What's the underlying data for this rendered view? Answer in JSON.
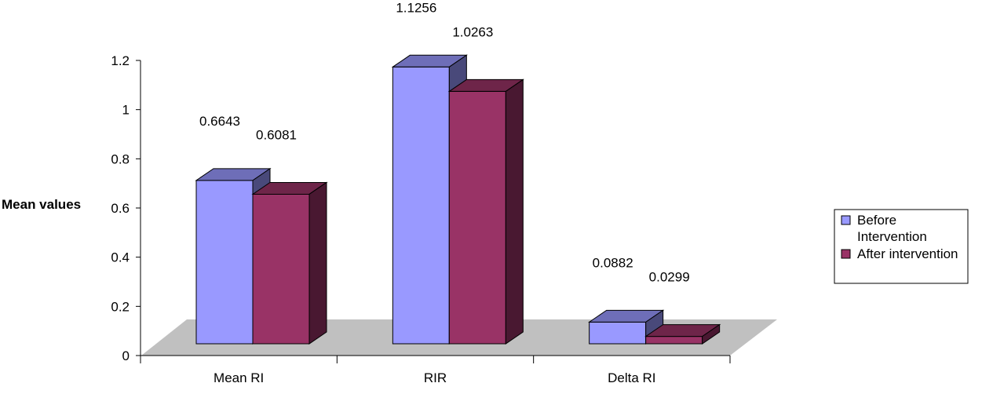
{
  "chart_data": {
    "type": "bar",
    "categories": [
      "Mean RI",
      "RIR",
      "Delta RI"
    ],
    "series": [
      {
        "name": "Before Intervention",
        "values": [
          0.6643,
          1.1256,
          0.0882
        ],
        "color": "#9999FF"
      },
      {
        "name": "After intervention",
        "values": [
          0.6081,
          1.0263,
          0.0299
        ],
        "color": "#993366"
      }
    ],
    "data_labels": [
      [
        "0.6643",
        "1.1256",
        "0.0882"
      ],
      [
        "0.6081",
        "1.0263",
        "0.0299"
      ]
    ],
    "ylabel": "Mean values",
    "xlabel": "",
    "ylim": [
      0,
      1.2
    ],
    "yticks": [
      0,
      0.2,
      0.4,
      0.6,
      0.8,
      1,
      1.2
    ],
    "ytick_labels": [
      "0",
      "0.2",
      "0.4",
      "0.6",
      "0.8",
      "1",
      "1.2"
    ],
    "legend_position": "right",
    "style": "3d-clustered-column",
    "floor_color": "#C0C0C0"
  }
}
